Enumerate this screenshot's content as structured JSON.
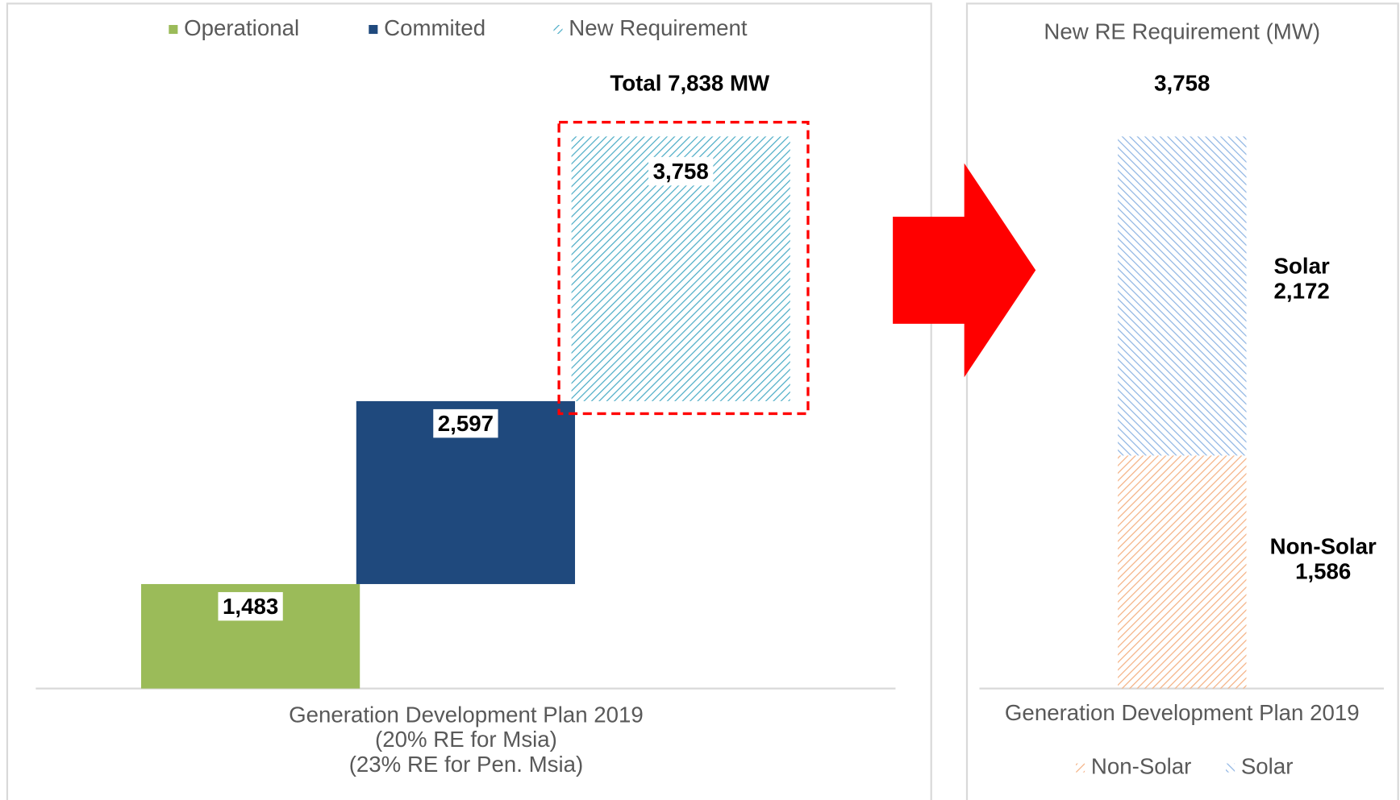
{
  "chart_data": [
    {
      "type": "waterfall",
      "series": [
        {
          "name": "Operational",
          "color": "#9bbb59",
          "hatch": null,
          "values": [
            1483
          ],
          "value_labels": [
            "1,483"
          ]
        },
        {
          "name": "Commited",
          "color": "#1f497d",
          "hatch": null,
          "values": [
            2597
          ],
          "value_labels": [
            "2,597"
          ]
        },
        {
          "name": "New Requirement",
          "color": "#4bacc6",
          "hatch": "/",
          "values": [
            3758
          ],
          "value_labels": [
            "3,758"
          ]
        }
      ],
      "annotation": "Total 7,838 MW",
      "categories": [
        [
          "Generation Development Plan 2019",
          "(20% RE for Msia)",
          "(23% RE for Pen. Msia)"
        ]
      ],
      "highlight_color": "#ff0000"
    },
    {
      "type": "stacked_bar",
      "title": "New RE Requirement (MW)",
      "total": 3758,
      "total_label": "3,758",
      "categories": [
        [
          "Generation Development Plan 2019"
        ]
      ],
      "series": [
        {
          "name": "Non-Solar",
          "color": "#f4b183",
          "hatch": "/",
          "values": [
            1586
          ],
          "value_labels": [
            "1,586"
          ]
        },
        {
          "name": "Solar",
          "color": "#8eb4e3",
          "hatch": "\\",
          "values": [
            2172
          ],
          "value_labels": [
            "2,172"
          ]
        }
      ]
    }
  ]
}
